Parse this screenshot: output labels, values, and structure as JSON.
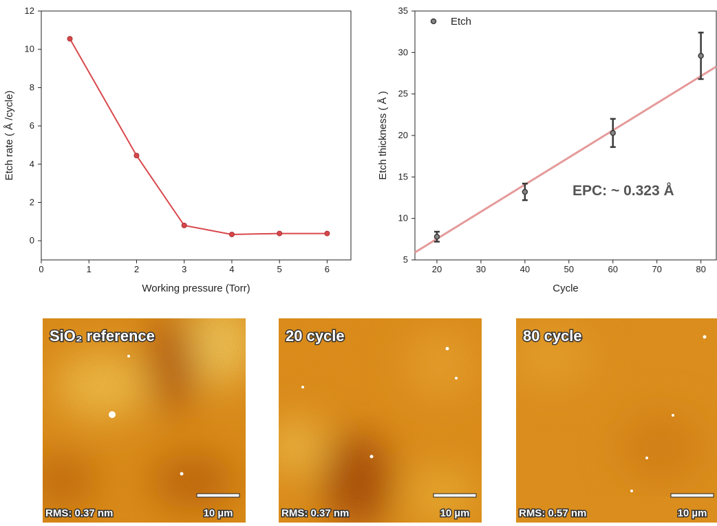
{
  "chart_data": [
    {
      "type": "line",
      "x_label": "Working pressure (Torr)",
      "y_label": "Etch rate ( Å /cycle)",
      "x": [
        0.6,
        2,
        3,
        4,
        5,
        6
      ],
      "values": [
        10.55,
        4.45,
        0.8,
        0.33,
        0.38,
        0.38
      ],
      "color": "#d9474b",
      "xlim": [
        0,
        6.5
      ],
      "xticks": [
        0,
        1,
        2,
        3,
        4,
        5,
        6
      ],
      "ylim": [
        -1,
        12
      ],
      "yticks": [
        0,
        2,
        4,
        6,
        8,
        10,
        12
      ]
    },
    {
      "type": "scatter",
      "x_label": "Cycle",
      "y_label": "Etch thickness ( Å )",
      "x": [
        20,
        40,
        60,
        80
      ],
      "series": [
        {
          "name": "Etch",
          "color": "#3a3a3a",
          "values": [
            7.8,
            13.2,
            20.3,
            29.6
          ],
          "errors": [
            0.6,
            1.0,
            1.7,
            2.8
          ]
        }
      ],
      "fit_line": {
        "x": [
          15,
          83.5
        ],
        "values": [
          5.9,
          28.3
        ],
        "color": "#e59a9a"
      },
      "annotation": "EPC: ~ 0.323 Å",
      "legend": "upper left",
      "xlim": [
        15,
        83.5
      ],
      "xticks": [
        20,
        30,
        40,
        50,
        60,
        70,
        80
      ],
      "ylim": [
        5,
        35
      ],
      "yticks": [
        5,
        10,
        15,
        20,
        25,
        30,
        35
      ]
    }
  ],
  "images": [
    {
      "title": "SiO₂ reference",
      "rms": "RMS: 0.37 nm",
      "scale_bar": "10 µm"
    },
    {
      "title": "20 cycle",
      "rms": "RMS: 0.37 nm",
      "scale_bar": "10 µm"
    },
    {
      "title": "80 cycle",
      "rms": "RMS: 0.57 nm",
      "scale_bar": "10 µm"
    }
  ]
}
